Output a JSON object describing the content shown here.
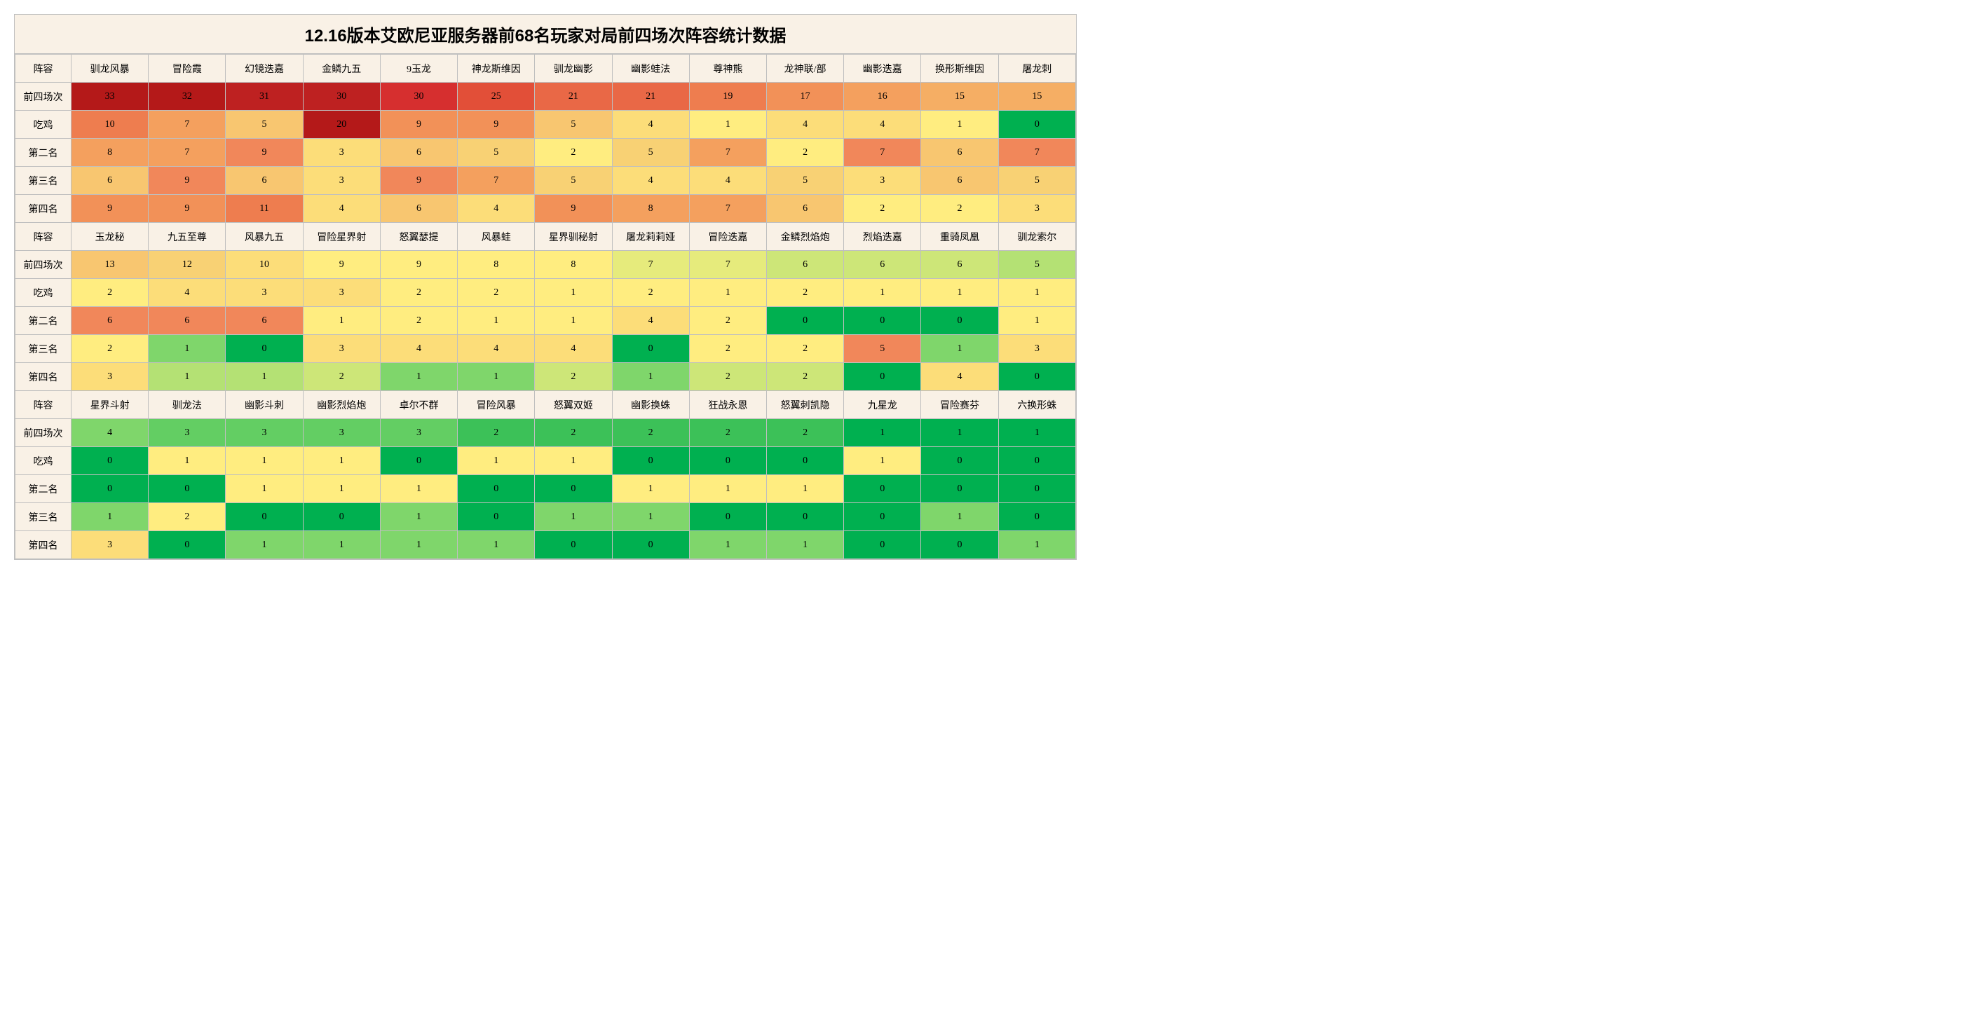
{
  "title": "12.16版本艾欧尼亚服务器前68名玩家对局前四场次阵容统计数据",
  "header_bg": "#f9f1e6",
  "border_color": "#bfbfbf",
  "row_labels": [
    "阵容",
    "前四场次",
    "吃鸡",
    "第二名",
    "第三名",
    "第四名"
  ],
  "blocks": [
    {
      "comps": [
        "驯龙风暴",
        "冒险霞",
        "幻镜迭嘉",
        "金鳞九五",
        "9玉龙",
        "神龙斯维因",
        "驯龙幽影",
        "幽影蛙法",
        "尊神熊",
        "龙神联/部",
        "幽影迭嘉",
        "换形斯维因",
        "屠龙刺"
      ],
      "rows": [
        {
          "vals": [
            33,
            32,
            31,
            30,
            30,
            25,
            21,
            21,
            19,
            17,
            16,
            15,
            15
          ],
          "colors": [
            "#b41919",
            "#b41919",
            "#be2121",
            "#be2121",
            "#d62f2f",
            "#e24f38",
            "#e96846",
            "#e96846",
            "#ee7d4f",
            "#f29158",
            "#f4a05e",
            "#f5ae64",
            "#f5ae64"
          ]
        },
        {
          "vals": [
            10,
            7,
            5,
            20,
            9,
            9,
            5,
            4,
            1,
            4,
            4,
            1,
            0
          ],
          "colors": [
            "#ee7d4f",
            "#f4a05e",
            "#f8c670",
            "#b41919",
            "#f29158",
            "#f29158",
            "#f8c670",
            "#fcdd79",
            "#ffed80",
            "#fcdd79",
            "#fcdd79",
            "#ffed80",
            "#00b050"
          ]
        },
        {
          "vals": [
            8,
            7,
            9,
            3,
            6,
            5,
            2,
            5,
            7,
            2,
            7,
            6,
            7
          ],
          "colors": [
            "#f4a05e",
            "#f4a05e",
            "#f1875a",
            "#fcdd79",
            "#f8c670",
            "#f8d174",
            "#ffed80",
            "#f8d174",
            "#f4a05e",
            "#ffed80",
            "#f1875a",
            "#f8c670",
            "#f1875a"
          ]
        },
        {
          "vals": [
            6,
            9,
            6,
            3,
            9,
            7,
            5,
            4,
            4,
            5,
            3,
            6,
            5
          ],
          "colors": [
            "#f8c670",
            "#f1875a",
            "#f8c670",
            "#fcdd79",
            "#f1875a",
            "#f4a05e",
            "#f8d174",
            "#fcdd79",
            "#fcdd79",
            "#f8d174",
            "#fcdd79",
            "#f8c670",
            "#f8d174"
          ]
        },
        {
          "vals": [
            9,
            9,
            11,
            4,
            6,
            4,
            9,
            8,
            7,
            6,
            2,
            2,
            3
          ],
          "colors": [
            "#f29158",
            "#f29158",
            "#ee7d4f",
            "#fcdd79",
            "#f8c670",
            "#fcdd79",
            "#f29158",
            "#f4a05e",
            "#f4a05e",
            "#f8c670",
            "#ffed80",
            "#ffed80",
            "#fcdd79"
          ]
        }
      ]
    },
    {
      "comps": [
        "玉龙秘",
        "九五至尊",
        "风暴九五",
        "冒险星界射",
        "怒翼瑟提",
        "风暴蛙",
        "星界驯秘射",
        "屠龙莉莉娅",
        "冒险迭嘉",
        "金鳞烈焰炮",
        "烈焰迭嘉",
        "重骑凤凰",
        "驯龙索尔"
      ],
      "rows": [
        {
          "vals": [
            13,
            12,
            10,
            9,
            9,
            8,
            8,
            7,
            7,
            6,
            6,
            6,
            5
          ],
          "colors": [
            "#f8c670",
            "#f8d174",
            "#fcdd79",
            "#ffed80",
            "#ffed80",
            "#ffed80",
            "#ffed80",
            "#e6eb7c",
            "#e6eb7c",
            "#cde678",
            "#cde678",
            "#cde678",
            "#b4e174"
          ]
        },
        {
          "vals": [
            2,
            4,
            3,
            3,
            2,
            2,
            1,
            2,
            1,
            2,
            1,
            1,
            1
          ],
          "colors": [
            "#ffed80",
            "#fcdd79",
            "#fcdd79",
            "#fcdd79",
            "#ffed80",
            "#ffed80",
            "#ffed80",
            "#ffed80",
            "#ffed80",
            "#ffed80",
            "#ffed80",
            "#ffed80",
            "#ffed80"
          ]
        },
        {
          "vals": [
            6,
            6,
            6,
            1,
            2,
            1,
            1,
            4,
            2,
            0,
            0,
            0,
            1
          ],
          "colors": [
            "#f1875a",
            "#f1875a",
            "#f1875a",
            "#ffed80",
            "#ffed80",
            "#ffed80",
            "#ffed80",
            "#fcdd79",
            "#ffed80",
            "#00b050",
            "#00b050",
            "#00b050",
            "#ffed80"
          ]
        },
        {
          "vals": [
            2,
            1,
            0,
            3,
            4,
            4,
            4,
            0,
            2,
            2,
            5,
            1,
            3
          ],
          "colors": [
            "#ffed80",
            "#7fd66b",
            "#00b050",
            "#fcdd79",
            "#fcdd79",
            "#fcdd79",
            "#fcdd79",
            "#00b050",
            "#ffed80",
            "#ffed80",
            "#f1875a",
            "#7fd66b",
            "#fcdd79"
          ]
        },
        {
          "vals": [
            3,
            1,
            1,
            2,
            1,
            1,
            2,
            1,
            2,
            2,
            0,
            4,
            0
          ],
          "colors": [
            "#fcdd79",
            "#b4e174",
            "#b4e174",
            "#cde678",
            "#7fd66b",
            "#7fd66b",
            "#cde678",
            "#7fd66b",
            "#cde678",
            "#cde678",
            "#00b050",
            "#fcdd79",
            "#00b050"
          ]
        }
      ]
    },
    {
      "comps": [
        "星界斗射",
        "驯龙法",
        "幽影斗刺",
        "幽影烈焰炮",
        "卓尔不群",
        "冒险风暴",
        "怒翼双姬",
        "幽影换蛛",
        "狂战永恩",
        "怒翼刺凯隐",
        "九星龙",
        "冒险赛芬",
        "六换形蛛"
      ],
      "rows": [
        {
          "vals": [
            4,
            3,
            3,
            3,
            3,
            2,
            2,
            2,
            2,
            2,
            1,
            1,
            1
          ],
          "colors": [
            "#7fd66b",
            "#63ce63",
            "#63ce63",
            "#63ce63",
            "#63ce63",
            "#3cc158",
            "#3cc158",
            "#3cc158",
            "#3cc158",
            "#3cc158",
            "#00b050",
            "#00b050",
            "#00b050"
          ]
        },
        {
          "vals": [
            0,
            1,
            1,
            1,
            0,
            1,
            1,
            0,
            0,
            0,
            1,
            0,
            0
          ],
          "colors": [
            "#00b050",
            "#ffed80",
            "#ffed80",
            "#ffed80",
            "#00b050",
            "#ffed80",
            "#ffed80",
            "#00b050",
            "#00b050",
            "#00b050",
            "#ffed80",
            "#00b050",
            "#00b050"
          ]
        },
        {
          "vals": [
            0,
            0,
            1,
            1,
            1,
            0,
            0,
            1,
            1,
            1,
            0,
            0,
            0
          ],
          "colors": [
            "#00b050",
            "#00b050",
            "#ffed80",
            "#ffed80",
            "#ffed80",
            "#00b050",
            "#00b050",
            "#ffed80",
            "#ffed80",
            "#ffed80",
            "#00b050",
            "#00b050",
            "#00b050"
          ]
        },
        {
          "vals": [
            1,
            2,
            0,
            0,
            1,
            0,
            1,
            1,
            0,
            0,
            0,
            1,
            0
          ],
          "colors": [
            "#7fd66b",
            "#ffed80",
            "#00b050",
            "#00b050",
            "#7fd66b",
            "#00b050",
            "#7fd66b",
            "#7fd66b",
            "#00b050",
            "#00b050",
            "#00b050",
            "#7fd66b",
            "#00b050"
          ]
        },
        {
          "vals": [
            3,
            0,
            1,
            1,
            1,
            1,
            0,
            0,
            1,
            1,
            0,
            0,
            1
          ],
          "colors": [
            "#fcdd79",
            "#00b050",
            "#7fd66b",
            "#7fd66b",
            "#7fd66b",
            "#7fd66b",
            "#00b050",
            "#00b050",
            "#7fd66b",
            "#7fd66b",
            "#00b050",
            "#00b050",
            "#7fd66b"
          ]
        }
      ]
    }
  ]
}
